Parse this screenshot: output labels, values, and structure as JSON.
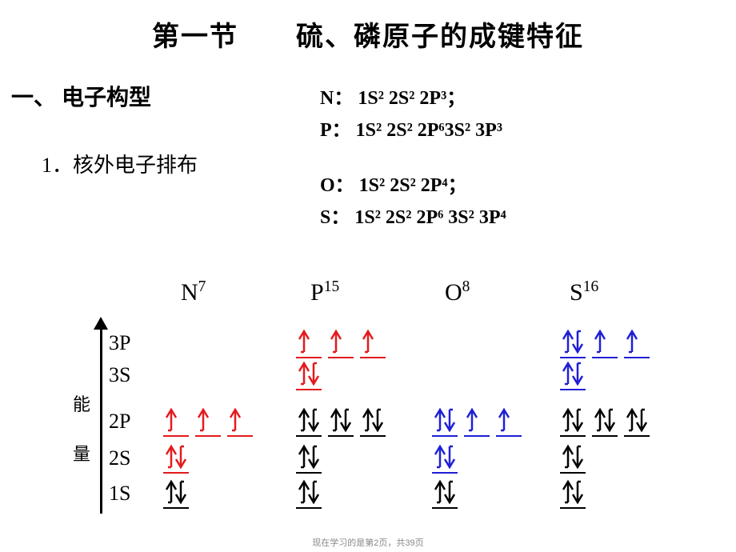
{
  "title": "第一节　　硫、磷原子的成键特征",
  "section1": "一、 电子构型",
  "sub1": "1．核外电子排布",
  "configs": {
    "N": {
      "label": "N：",
      "text": "1S² 2S² 2P³；"
    },
    "P": {
      "label": "P：",
      "text": "1S² 2S² 2P⁶3S² 3P³"
    },
    "O": {
      "label": "O：",
      "text": "1S² 2S² 2P⁴；"
    },
    "S": {
      "label": "S：",
      "text": "1S² 2S² 2P⁶ 3S² 3P⁴"
    }
  },
  "atoms": {
    "N": {
      "sym": "N",
      "sup": "7"
    },
    "P": {
      "sym": "P",
      "sup": "15"
    },
    "O": {
      "sym": "O",
      "sup": "8"
    },
    "S": {
      "sym": "S",
      "sup": "16"
    }
  },
  "axis": {
    "l1": "能",
    "l2": "量"
  },
  "orbital_labels": {
    "3P": "3P",
    "3S": "3S",
    "2P": "2P",
    "2S": "2S",
    "1S": "1S"
  },
  "colors": {
    "black": "#000000",
    "red": "#e41a1c",
    "blue": "#1f1fd6"
  },
  "diagram": {
    "row_tops": {
      "3P": 414,
      "3S": 454,
      "2P": 512,
      "2S": 558,
      "1S": 602
    },
    "col_lefts": {
      "N": 204,
      "P": 370,
      "O": 540,
      "S": 700
    },
    "box_spacing": 40,
    "orbitals": {
      "N": {
        "2P": {
          "boxes": 3,
          "fill": [
            "u",
            "u",
            "u"
          ],
          "color": "red"
        },
        "2S": {
          "boxes": 1,
          "fill": [
            "ud"
          ],
          "color": "red"
        },
        "1S": {
          "boxes": 1,
          "fill": [
            "ud"
          ],
          "color": "black"
        }
      },
      "P": {
        "3P": {
          "boxes": 3,
          "fill": [
            "u",
            "u",
            "u"
          ],
          "color": "red"
        },
        "3S": {
          "boxes": 1,
          "fill": [
            "ud"
          ],
          "color": "red"
        },
        "2P": {
          "boxes": 3,
          "fill": [
            "ud",
            "ud",
            "ud"
          ],
          "color": "black"
        },
        "2S": {
          "boxes": 1,
          "fill": [
            "ud"
          ],
          "color": "black"
        },
        "1S": {
          "boxes": 1,
          "fill": [
            "ud"
          ],
          "color": "black"
        }
      },
      "O": {
        "2P": {
          "boxes": 3,
          "fill": [
            "ud",
            "u",
            "u"
          ],
          "color": "blue"
        },
        "2S": {
          "boxes": 1,
          "fill": [
            "ud"
          ],
          "color": "blue"
        },
        "1S": {
          "boxes": 1,
          "fill": [
            "ud"
          ],
          "color": "black"
        }
      },
      "S": {
        "3P": {
          "boxes": 3,
          "fill": [
            "ud",
            "u",
            "u"
          ],
          "color": "blue"
        },
        "3S": {
          "boxes": 1,
          "fill": [
            "ud"
          ],
          "color": "blue"
        },
        "2P": {
          "boxes": 3,
          "fill": [
            "ud",
            "ud",
            "ud"
          ],
          "color": "black"
        },
        "2S": {
          "boxes": 1,
          "fill": [
            "ud"
          ],
          "color": "black"
        },
        "1S": {
          "boxes": 1,
          "fill": [
            "ud"
          ],
          "color": "black"
        }
      }
    }
  },
  "footer": "现在学习的是第2页，共39页"
}
